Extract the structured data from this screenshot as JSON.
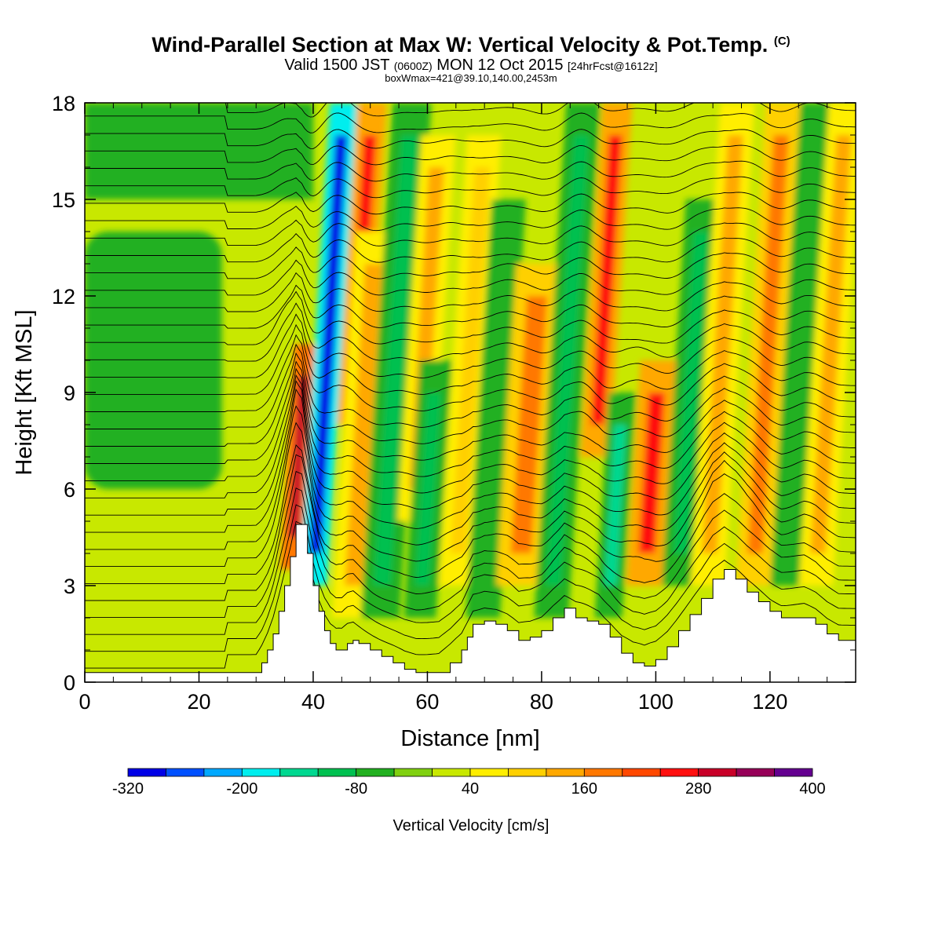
{
  "title": {
    "main": "Wind-Parallel Section at Max W: Vertical Velocity & Pot.Temp.",
    "copyright": "(C)",
    "valid_prefix": "Valid 1500 JST",
    "valid_z": "(0600Z)",
    "valid_date": "MON 12 Oct 2015",
    "forecast": "[24hrFcst@1612z]",
    "box": "boxWmax=421@39.10,140.00,2453m"
  },
  "chart_data": {
    "type": "heatmap",
    "xlabel": "Distance [nm]",
    "ylabel": "Height [Kft MSL]",
    "xlim": [
      0,
      135
    ],
    "ylim": [
      0,
      18
    ],
    "xticks": [
      0,
      20,
      40,
      60,
      80,
      100,
      120
    ],
    "yticks": [
      0,
      3,
      6,
      9,
      12,
      15,
      18
    ],
    "colorbar": {
      "label": "Vertical Velocity [cm/s]",
      "levels": [
        -320,
        -280,
        -240,
        -200,
        -160,
        -120,
        -80,
        -40,
        0,
        40,
        80,
        120,
        160,
        200,
        240,
        280,
        320,
        360,
        400
      ],
      "tick_labels": [
        -320,
        -200,
        -80,
        40,
        160,
        280,
        400
      ],
      "colors": [
        "#0000e6",
        "#0050ff",
        "#00a8ff",
        "#00eeee",
        "#00d890",
        "#00c050",
        "#22b020",
        "#80d010",
        "#c8e800",
        "#ffee00",
        "#ffd000",
        "#ffa800",
        "#ff7800",
        "#ff4800",
        "#ff1010",
        "#c80028",
        "#960058",
        "#640090"
      ]
    },
    "terrain_kft": {
      "x": [
        0,
        30,
        31,
        32,
        33,
        34,
        35,
        36,
        37,
        38,
        39,
        40,
        41,
        42,
        43,
        44,
        45,
        46,
        47,
        48,
        50,
        52,
        54,
        56,
        58,
        60,
        62,
        64,
        66,
        67,
        68,
        70,
        72,
        74,
        76,
        78,
        80,
        82,
        84,
        86,
        88,
        90,
        92,
        94,
        96,
        98,
        100,
        102,
        104,
        106,
        108,
        110,
        112,
        114,
        116,
        118,
        120,
        122,
        124,
        126,
        128,
        130,
        132,
        134,
        135
      ],
      "height": [
        0.3,
        0.3,
        0.6,
        1.0,
        1.5,
        2.2,
        3.0,
        3.9,
        4.9,
        4.9,
        4.0,
        3.0,
        2.2,
        1.6,
        1.2,
        1.0,
        1.0,
        1.2,
        1.3,
        1.2,
        1.0,
        0.8,
        0.6,
        0.4,
        0.3,
        0.3,
        0.3,
        0.6,
        1.0,
        1.4,
        1.8,
        1.9,
        1.8,
        1.6,
        1.3,
        1.4,
        1.6,
        2.0,
        2.3,
        2.0,
        1.9,
        1.8,
        1.4,
        0.9,
        0.6,
        0.5,
        0.7,
        1.1,
        1.6,
        2.1,
        2.6,
        3.2,
        3.5,
        3.2,
        2.8,
        2.5,
        2.2,
        2.0,
        2.0,
        2.0,
        1.8,
        1.5,
        1.3,
        1.3,
        1.3
      ]
    },
    "updraft_bands": [
      {
        "x": 35,
        "w": 2.0,
        "y0": 3.5,
        "y1": 10.5,
        "value": 300
      },
      {
        "x": 39,
        "w": 2.4,
        "y0": 3,
        "y1": 18,
        "value": -300
      },
      {
        "x": 44,
        "w": 2.6,
        "y0": 8,
        "y1": 18,
        "value": 260
      },
      {
        "x": 46,
        "w": 3.4,
        "y0": 2,
        "y1": 14,
        "value": 140
      },
      {
        "x": 51,
        "w": 3.4,
        "y0": 2,
        "y1": 18,
        "value": -100
      },
      {
        "x": 56,
        "w": 3.0,
        "y0": 5,
        "y1": 17,
        "value": 130
      },
      {
        "x": 58,
        "w": 2.8,
        "y0": 2,
        "y1": 10,
        "value": -90
      },
      {
        "x": 64,
        "w": 3.0,
        "y0": 3,
        "y1": 17,
        "value": 110
      },
      {
        "x": 69,
        "w": 3.0,
        "y0": 2,
        "y1": 15,
        "value": -80
      },
      {
        "x": 75,
        "w": 4.0,
        "y0": 3,
        "y1": 13,
        "value": 180
      },
      {
        "x": 81,
        "w": 3.0,
        "y0": 2,
        "y1": 18,
        "value": -100
      },
      {
        "x": 87,
        "w": 2.6,
        "y0": 7,
        "y1": 18,
        "value": 240
      },
      {
        "x": 91,
        "w": 2.4,
        "y0": 2,
        "y1": 9,
        "value": -140
      },
      {
        "x": 97,
        "w": 3.2,
        "y0": 3,
        "y1": 10,
        "value": 240
      },
      {
        "x": 103,
        "w": 3.0,
        "y0": 3,
        "y1": 15,
        "value": -90
      },
      {
        "x": 108,
        "w": 3.0,
        "y0": 3,
        "y1": 18,
        "value": 120
      },
      {
        "x": 116,
        "w": 3.0,
        "y0": 3,
        "y1": 18,
        "value": 160
      },
      {
        "x": 122,
        "w": 3.0,
        "y0": 3,
        "y1": 18,
        "value": -80
      },
      {
        "x": 127,
        "w": 3.0,
        "y0": 3,
        "y1": 18,
        "value": 130
      }
    ],
    "downdraft_region": {
      "x0": 0,
      "x1": 24,
      "y0": 6,
      "y1": 14,
      "value": -60
    },
    "isentropes_count": 34
  }
}
